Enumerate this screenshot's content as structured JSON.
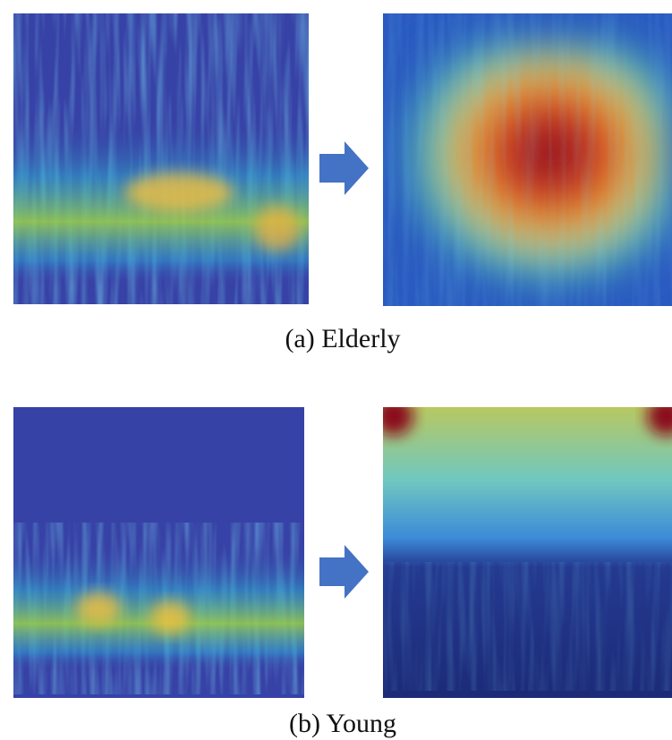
{
  "panels": [
    {
      "caption": "(a) Elderly"
    },
    {
      "caption": "(b) Young"
    }
  ]
}
